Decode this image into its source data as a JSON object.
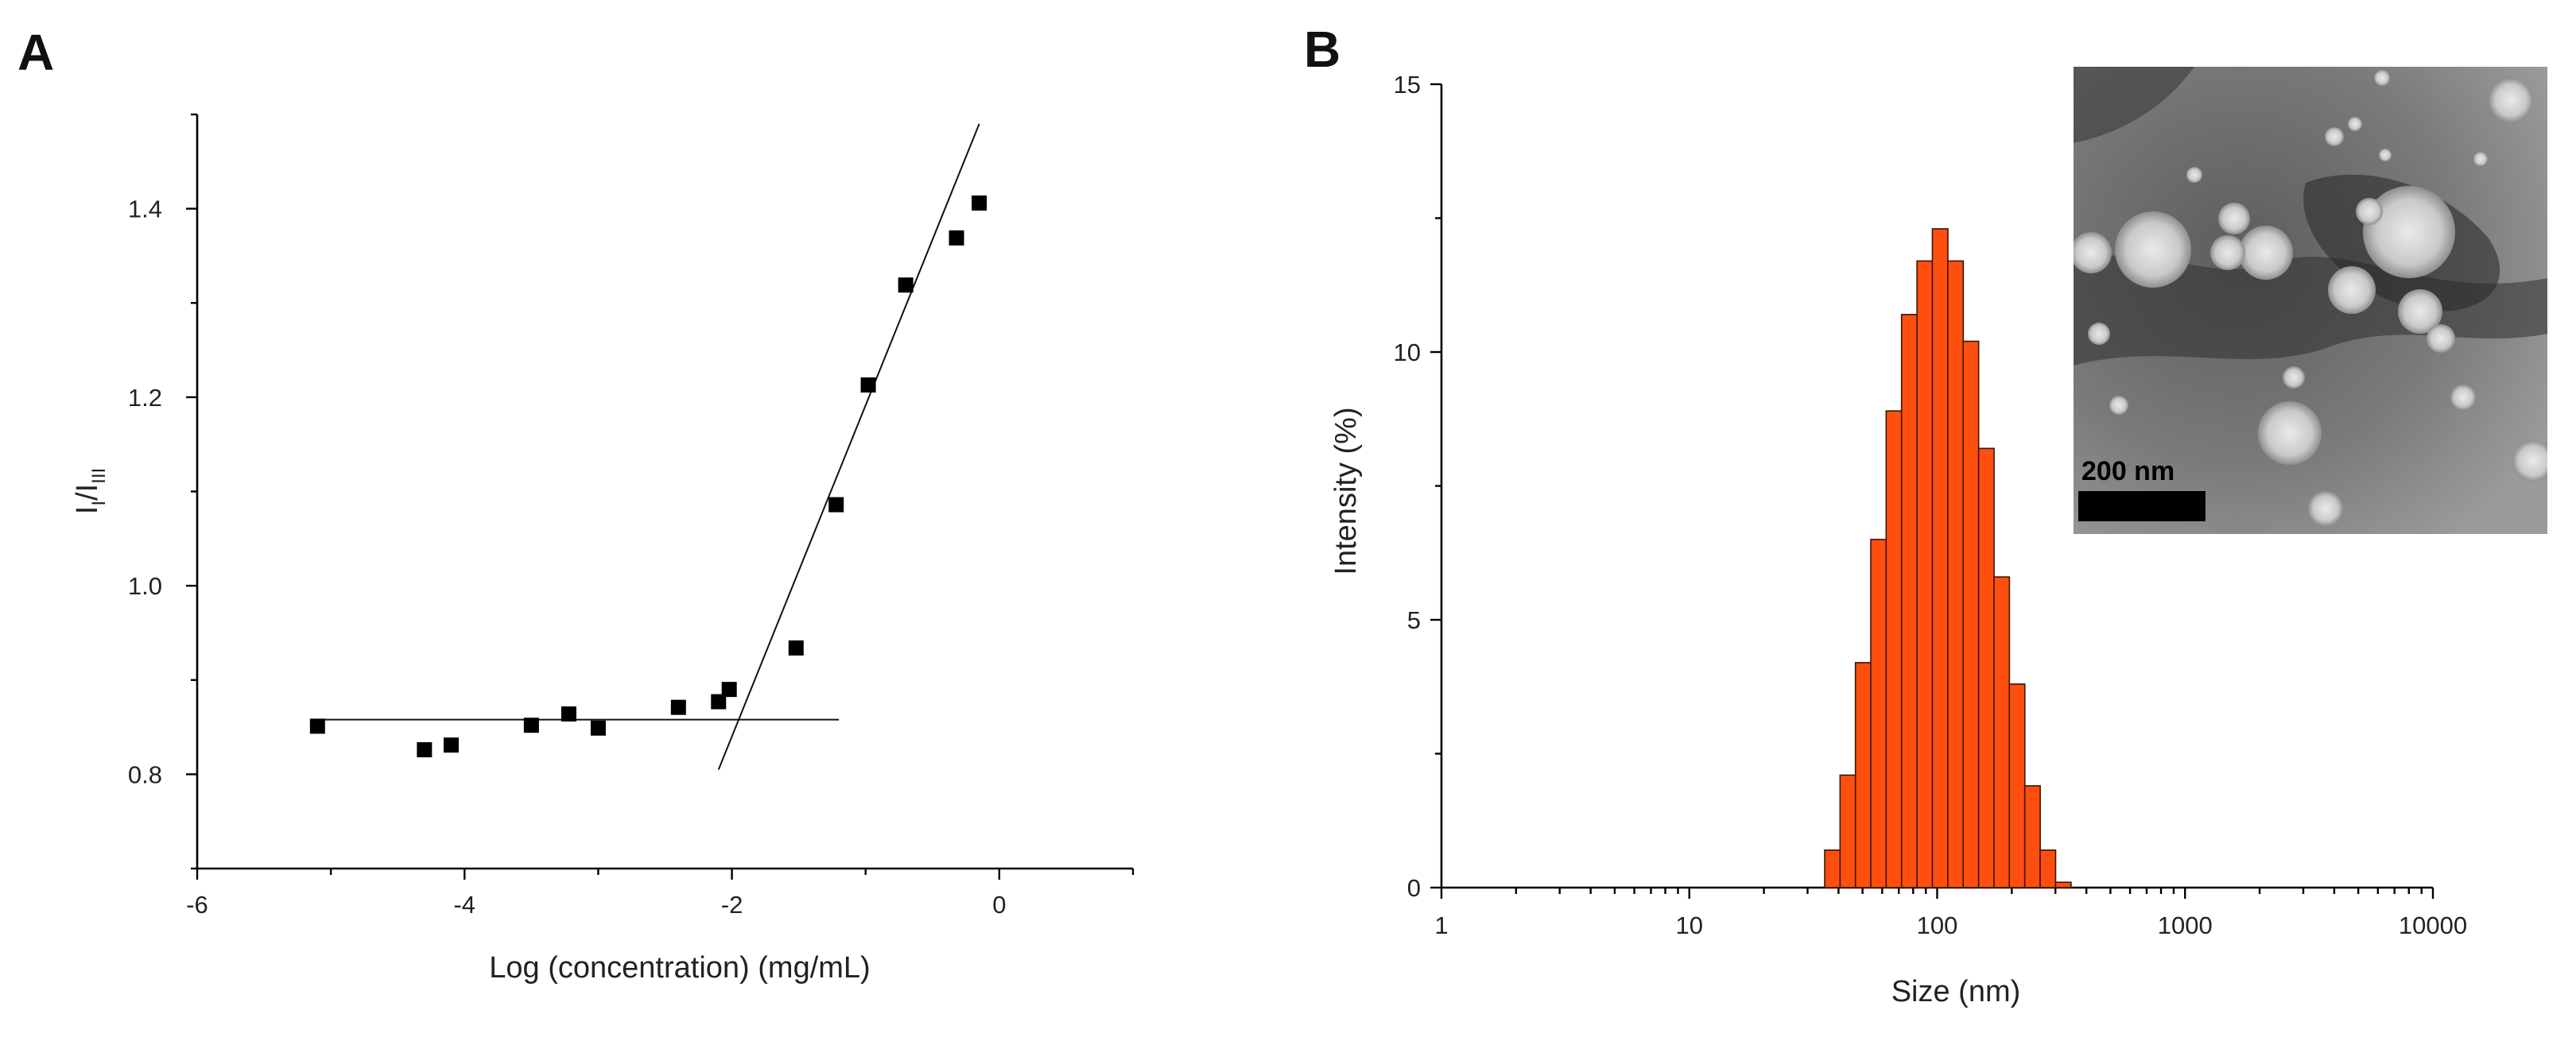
{
  "chart_data": [
    {
      "panel": "A",
      "type": "scatter",
      "xlabel": "Log (concentration) (mg/mL)",
      "ylabel": "I_I/I_III",
      "ylabel_main": "I",
      "ylabel_sub1": "I",
      "ylabel_mid": "/I",
      "ylabel_sub2": "III",
      "xlim": [
        -6,
        1
      ],
      "ylim": [
        0.7,
        1.5
      ],
      "xticks": [
        -6,
        -4,
        -2,
        0
      ],
      "yticks": [
        0.8,
        1.0,
        1.2,
        1.4
      ],
      "xtick_labels": [
        "-6",
        "-4",
        "-2",
        "0"
      ],
      "ytick_labels": [
        "0.8",
        "1.0",
        "1.2",
        "1.4"
      ],
      "points": [
        {
          "x": -5.1,
          "y": 0.851
        },
        {
          "x": -4.3,
          "y": 0.826
        },
        {
          "x": -4.1,
          "y": 0.831
        },
        {
          "x": -3.5,
          "y": 0.852
        },
        {
          "x": -3.22,
          "y": 0.864
        },
        {
          "x": -3.0,
          "y": 0.849
        },
        {
          "x": -2.4,
          "y": 0.871
        },
        {
          "x": -2.1,
          "y": 0.877
        },
        {
          "x": -2.02,
          "y": 0.89
        },
        {
          "x": -1.52,
          "y": 0.934
        },
        {
          "x": -1.22,
          "y": 1.086
        },
        {
          "x": -0.98,
          "y": 1.213
        },
        {
          "x": -0.7,
          "y": 1.319
        },
        {
          "x": -0.32,
          "y": 1.369
        },
        {
          "x": -0.15,
          "y": 1.406
        }
      ],
      "fit_lines": [
        {
          "name": "baseline",
          "x": [
            -5.1,
            -1.2
          ],
          "y": [
            0.858,
            0.858
          ]
        },
        {
          "name": "rise",
          "x": [
            -2.1,
            -0.15
          ],
          "y": [
            0.805,
            1.49
          ]
        }
      ]
    },
    {
      "panel": "B",
      "type": "bar",
      "xscale": "log",
      "xlabel": "Size (nm)",
      "ylabel": "Intensity (%)",
      "xlim": [
        1,
        10000
      ],
      "ylim": [
        0,
        15
      ],
      "xticks": [
        1,
        10,
        100,
        1000,
        10000
      ],
      "xtick_labels": [
        "1",
        "10",
        "100",
        "1000",
        "10000"
      ],
      "yticks": [
        0,
        5,
        10,
        15
      ],
      "ytick_labels": [
        "0",
        "5",
        "10",
        "15"
      ],
      "bin_width_log10": 0.0625,
      "bins": [
        {
          "size_nm": 37.8,
          "intensity": 0.7
        },
        {
          "size_nm": 43.6,
          "intensity": 2.1
        },
        {
          "size_nm": 50.3,
          "intensity": 4.2
        },
        {
          "size_nm": 58.0,
          "intensity": 6.5
        },
        {
          "size_nm": 66.9,
          "intensity": 8.9
        },
        {
          "size_nm": 77.2,
          "intensity": 10.7
        },
        {
          "size_nm": 89.1,
          "intensity": 11.7
        },
        {
          "size_nm": 102.8,
          "intensity": 12.3
        },
        {
          "size_nm": 118.6,
          "intensity": 11.7
        },
        {
          "size_nm": 136.8,
          "intensity": 10.2
        },
        {
          "size_nm": 157.9,
          "intensity": 8.2
        },
        {
          "size_nm": 182.1,
          "intensity": 5.8
        },
        {
          "size_nm": 210.1,
          "intensity": 3.8
        },
        {
          "size_nm": 242.4,
          "intensity": 1.9
        },
        {
          "size_nm": 279.7,
          "intensity": 0.7
        },
        {
          "size_nm": 322.7,
          "intensity": 0.1
        }
      ],
      "inset": {
        "description_type": "TEM micrograph",
        "scale_bar_label": "200 nm"
      }
    }
  ]
}
